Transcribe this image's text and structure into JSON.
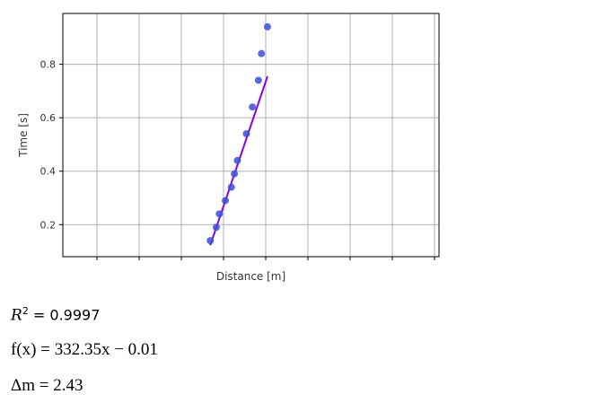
{
  "chart_data": {
    "type": "scatter",
    "xlabel": "Distance [m]",
    "ylabel": "Time [s]",
    "ylim": [
      0.08,
      0.99
    ],
    "y_ticks": [
      0.2,
      0.4,
      0.6,
      0.8
    ],
    "grid": true,
    "x_tick_labels_shown": false,
    "series": [
      {
        "kind": "points",
        "color": "#3b4fd9",
        "x": [
          0.0004,
          0.0006,
          0.0007,
          0.0009,
          0.0011,
          0.0012,
          0.0013,
          0.0016,
          0.0018,
          0.002,
          0.0021,
          0.0023
        ],
        "y": [
          0.14,
          0.19,
          0.24,
          0.29,
          0.34,
          0.39,
          0.44,
          0.54,
          0.64,
          0.74,
          0.84,
          0.94
        ]
      },
      {
        "kind": "fit-line",
        "color": "#8a00e6",
        "slope": 332.35,
        "intercept": -0.01
      }
    ]
  },
  "stats": {
    "r2_symbol": "R",
    "r2_power": "2",
    "r2_value": " = 0.9997",
    "fit_equation": "f(x) = 332.35x − 0.01",
    "delta_m": "Δm = 2.43"
  }
}
